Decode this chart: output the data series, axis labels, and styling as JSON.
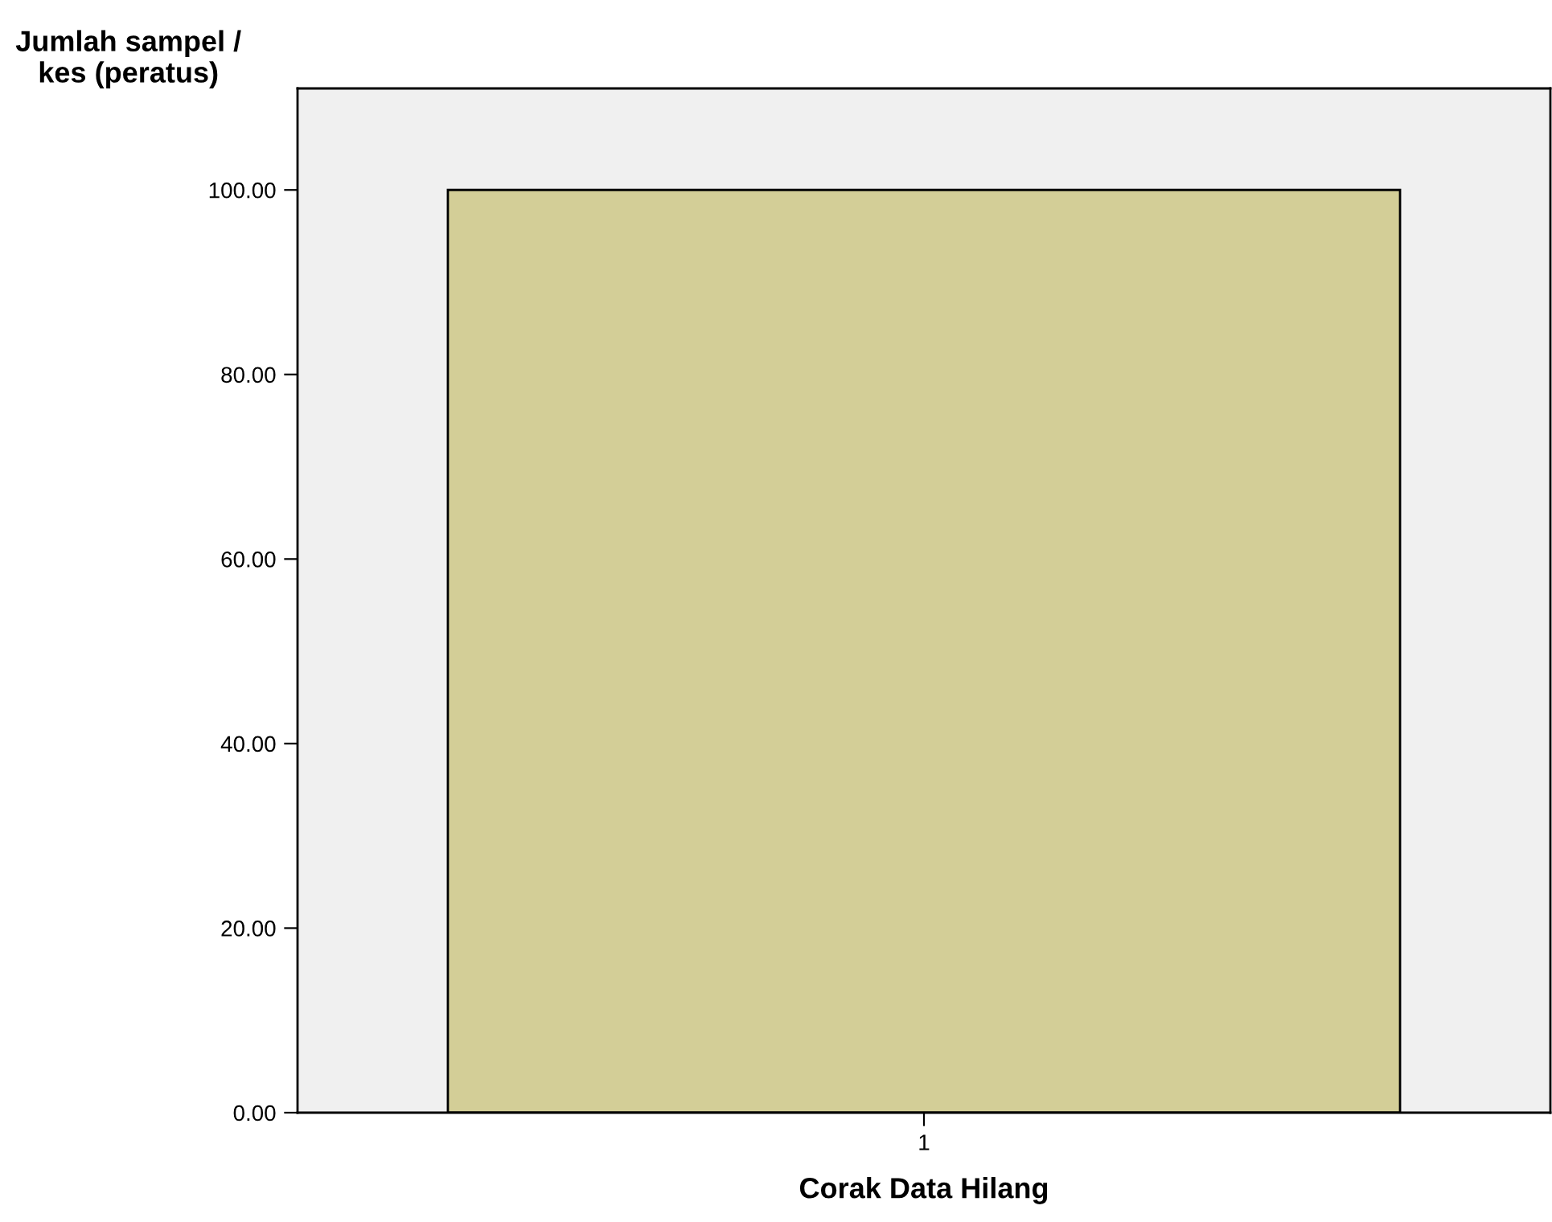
{
  "chart_data": {
    "type": "bar",
    "xlabel": "Corak Data Hilang",
    "ylabel": "Jumlah sampel /\nkes (peratus)",
    "categories": [
      "1"
    ],
    "values": [
      100.0
    ],
    "color": "#d3ce97",
    "ylim": [
      0,
      111
    ],
    "yticks": [
      {
        "value": 0,
        "label": "0.00"
      },
      {
        "value": 20,
        "label": "20.00"
      },
      {
        "value": 40,
        "label": "40.00"
      },
      {
        "value": 60,
        "label": "60.00"
      },
      {
        "value": 80,
        "label": "80.00"
      },
      {
        "value": 100,
        "label": "100.00"
      }
    ],
    "grid": false,
    "legend": false
  }
}
